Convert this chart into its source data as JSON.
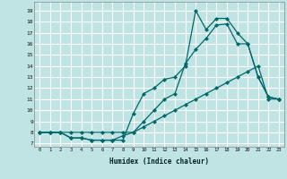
{
  "xlabel": "Humidex (Indice chaleur)",
  "bg_color": "#c0e4e4",
  "grid_color": "#ffffff",
  "line_color": "#006868",
  "xlim": [
    -0.5,
    23.5
  ],
  "ylim": [
    6.7,
    19.8
  ],
  "xticks": [
    0,
    1,
    2,
    3,
    4,
    5,
    6,
    7,
    8,
    9,
    10,
    11,
    12,
    13,
    14,
    15,
    16,
    17,
    18,
    19,
    20,
    21,
    22,
    23
  ],
  "yticks": [
    7,
    8,
    9,
    10,
    11,
    12,
    13,
    14,
    15,
    16,
    17,
    18,
    19
  ],
  "series": [
    {
      "x": [
        0,
        1,
        2,
        3,
        4,
        5,
        6,
        7,
        8,
        9,
        10,
        11,
        12,
        13,
        14,
        15,
        16,
        17,
        18,
        19,
        20,
        21,
        22,
        23
      ],
      "y": [
        8,
        8,
        8,
        7.5,
        7.5,
        7.3,
        7.3,
        7.3,
        7.3,
        9.7,
        11.5,
        12,
        12.8,
        13,
        14,
        19,
        17.3,
        18.3,
        18.3,
        17,
        16,
        13,
        11.2,
        11
      ]
    },
    {
      "x": [
        0,
        1,
        2,
        3,
        4,
        5,
        6,
        7,
        8,
        9,
        10,
        11,
        12,
        13,
        14,
        15,
        16,
        17,
        18,
        19,
        20,
        21,
        22,
        23
      ],
      "y": [
        8,
        8,
        8,
        7.5,
        7.5,
        7.3,
        7.3,
        7.3,
        7.7,
        8,
        9,
        10,
        11,
        11.5,
        14.2,
        15.5,
        16.5,
        17.7,
        17.8,
        16,
        16,
        13,
        11.2,
        11
      ]
    },
    {
      "x": [
        0,
        1,
        2,
        3,
        4,
        5,
        6,
        7,
        8,
        9,
        10,
        11,
        12,
        13,
        14,
        15,
        16,
        17,
        18,
        19,
        20,
        21,
        22,
        23
      ],
      "y": [
        8,
        8,
        8,
        8,
        8,
        8,
        8,
        8,
        8,
        8,
        8.5,
        9,
        9.5,
        10,
        10.5,
        11,
        11.5,
        12,
        12.5,
        13,
        13.5,
        14,
        11,
        11
      ]
    }
  ]
}
